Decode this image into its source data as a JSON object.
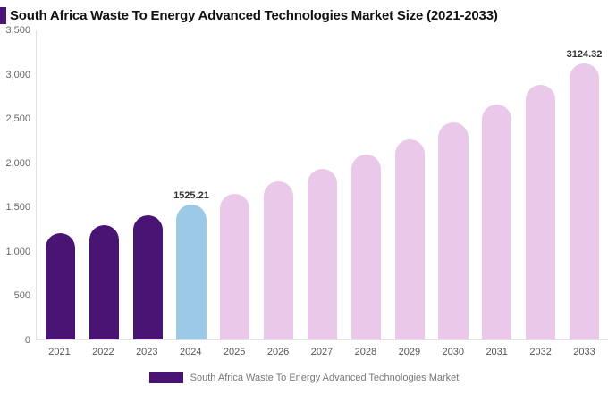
{
  "title": "South Africa Waste To Energy Advanced Technologies Market Size (2021-2033)",
  "legend": {
    "label": "South Africa Waste To Energy Advanced Technologies Market",
    "swatch_color": "#4a1475"
  },
  "chart_data": {
    "type": "bar",
    "title": "South Africa Waste To Energy Advanced Technologies Market Size (2021-2033)",
    "xlabel": "",
    "ylabel": "",
    "categories": [
      "2021",
      "2022",
      "2023",
      "2024",
      "2025",
      "2026",
      "2027",
      "2028",
      "2029",
      "2030",
      "2031",
      "2032",
      "2033"
    ],
    "values": [
      1200,
      1300,
      1405,
      1525.21,
      1650,
      1790,
      1935,
      2095,
      2270,
      2455,
      2660,
      2880,
      3124.32
    ],
    "data_labels": {
      "2024": "1525.21",
      "2033": "3124.32"
    },
    "bar_color_keys": [
      "historical",
      "historical",
      "historical",
      "current",
      "forecast",
      "forecast",
      "forecast",
      "forecast",
      "forecast",
      "forecast",
      "forecast",
      "forecast",
      "forecast"
    ],
    "palette": {
      "historical": "#4a1475",
      "current": "#9cc9e5",
      "forecast": "#e9c8e9"
    },
    "ylim": [
      0,
      3500
    ],
    "yticks": [
      "0",
      "500",
      "1,000",
      "1,500",
      "2,000",
      "2,500",
      "3,000",
      "3,500"
    ],
    "grid": false,
    "legend_position": "bottom"
  }
}
